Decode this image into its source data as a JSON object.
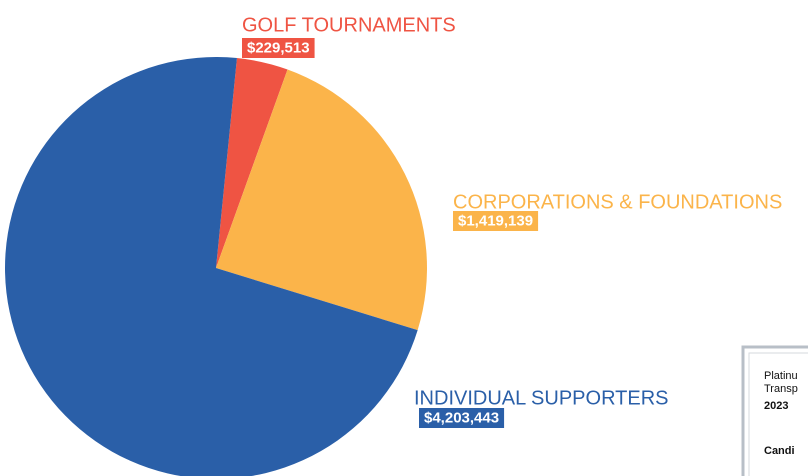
{
  "chart_data": {
    "type": "pie",
    "categories": [
      "GOLF TOURNAMENTS",
      "CORPORATIONS & FOUNDATIONS",
      "INDIVIDUAL SUPPORTERS"
    ],
    "values": [
      229513,
      1419139,
      4203443
    ],
    "value_labels": [
      "$229,513",
      "$1,419,139",
      "$4,203,443"
    ],
    "colors": [
      "#ef5443",
      "#fbb44a",
      "#2a5fa8"
    ]
  },
  "badge": {
    "lines": [
      "Platinu",
      "Transp",
      "2023",
      "Candi"
    ]
  }
}
